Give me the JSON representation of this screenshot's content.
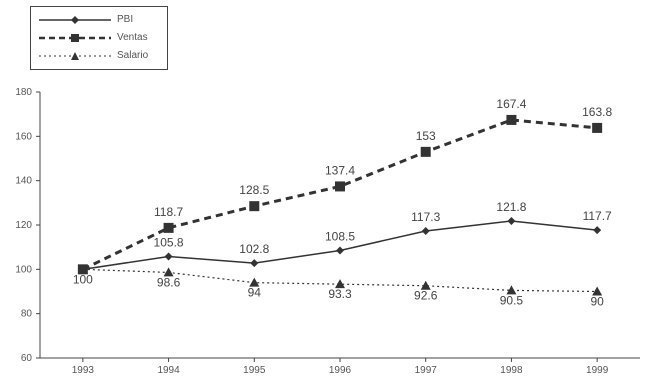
{
  "chart_data": {
    "type": "line",
    "title": "",
    "xlabel": "",
    "ylabel": "",
    "x": [
      "1993",
      "1994",
      "1995",
      "1996",
      "1997",
      "1998",
      "1999"
    ],
    "ylim": [
      60,
      180
    ],
    "yticks": [
      "60",
      "80",
      "100",
      "120",
      "140",
      "160",
      "180"
    ],
    "grid": false,
    "legend_position": "top-left",
    "series": [
      {
        "name": "PBI",
        "values": [
          100,
          105.8,
          102.8,
          108.5,
          117.3,
          121.8,
          117.7
        ],
        "labels": [
          "",
          "105.8",
          "102.8",
          "108.5",
          "117.3",
          "121.8",
          "117.7"
        ],
        "line_style": "solid",
        "marker": "diamond",
        "color": "#333333"
      },
      {
        "name": "Ventas",
        "values": [
          100,
          118.7,
          128.5,
          137.4,
          153,
          167.4,
          163.8
        ],
        "labels": [
          "",
          "118.7",
          "128.5",
          "137.4",
          "153",
          "167.4",
          "163.8"
        ],
        "line_style": "dashed",
        "marker": "square",
        "color": "#333333"
      },
      {
        "name": "Salario",
        "values": [
          100,
          98.6,
          94,
          93.3,
          92.6,
          90.5,
          90
        ],
        "labels": [
          "100",
          "98.6",
          "94",
          "93.3",
          "92.6",
          "90.5",
          "90"
        ],
        "line_style": "dotted",
        "marker": "triangle",
        "color": "#333333"
      }
    ]
  }
}
